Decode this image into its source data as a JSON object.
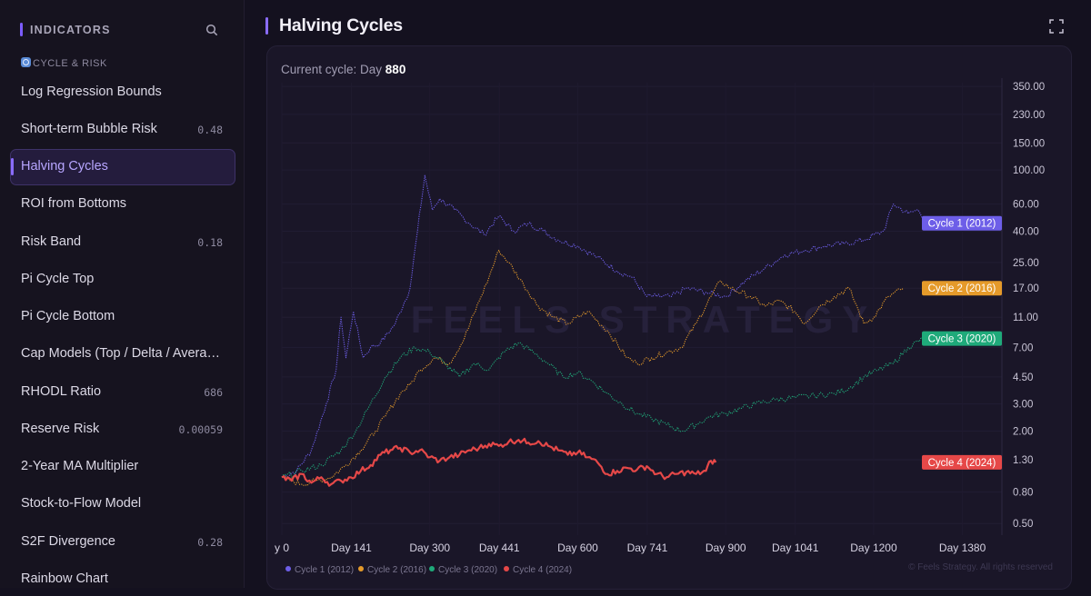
{
  "sidebar": {
    "title": "INDICATORS",
    "search_icon": "search-icon",
    "section_label": "CYCLE & RISK",
    "section_icon": "cycle-icon",
    "items": [
      {
        "label": "Log Regression Bounds",
        "value": ""
      },
      {
        "label": "Short-term Bubble Risk",
        "value": "0.48"
      },
      {
        "label": "Halving Cycles",
        "value": "",
        "active": true
      },
      {
        "label": "ROI from Bottoms",
        "value": ""
      },
      {
        "label": "Risk Band",
        "value": "0.18"
      },
      {
        "label": "Pi Cycle Top",
        "value": ""
      },
      {
        "label": "Pi Cycle Bottom",
        "value": ""
      },
      {
        "label": "Cap Models (Top / Delta / Averag…",
        "value": ""
      },
      {
        "label": "RHODL Ratio",
        "value": "686"
      },
      {
        "label": "Reserve Risk",
        "value": "0.00059"
      },
      {
        "label": "2-Year MA Multiplier",
        "value": ""
      },
      {
        "label": "Stock-to-Flow Model",
        "value": ""
      },
      {
        "label": "S2F Divergence",
        "value": "0.28"
      },
      {
        "label": "Rainbow Chart",
        "value": ""
      }
    ]
  },
  "header": {
    "title": "Halving Cycles",
    "expand_icon": "expand-icon"
  },
  "card": {
    "current_cycle_prefix": "Current cycle: Day ",
    "current_cycle_day": "880",
    "watermark": "FEELS STRATEGY",
    "copyright": "© Feels Strategy. All rights reserved"
  },
  "chart_data": {
    "type": "line",
    "title": "Halving Cycles",
    "xlabel": "",
    "ylabel": "",
    "y_scale": "log",
    "ylim": [
      0.42,
      370
    ],
    "xlim": [
      0,
      1460
    ],
    "x_ticks": [
      {
        "x": 0,
        "label": "y 0"
      },
      {
        "x": 141,
        "label": "Day 141"
      },
      {
        "x": 300,
        "label": "Day 300"
      },
      {
        "x": 441,
        "label": "Day 441"
      },
      {
        "x": 600,
        "label": "Day 600"
      },
      {
        "x": 741,
        "label": "Day 741"
      },
      {
        "x": 900,
        "label": "Day 900"
      },
      {
        "x": 1041,
        "label": "Day 1041"
      },
      {
        "x": 1200,
        "label": "Day 1200"
      },
      {
        "x": 1380,
        "label": "Day 1380"
      }
    ],
    "y_ticks": [
      {
        "v": 350,
        "label": "350.00"
      },
      {
        "v": 230,
        "label": "230.00"
      },
      {
        "v": 150,
        "label": "150.00"
      },
      {
        "v": 100,
        "label": "100.00"
      },
      {
        "v": 60,
        "label": "60.00"
      },
      {
        "v": 40,
        "label": "40.00"
      },
      {
        "v": 25,
        "label": "25.00"
      },
      {
        "v": 17,
        "label": "17.00"
      },
      {
        "v": 11,
        "label": "11.00"
      },
      {
        "v": 7,
        "label": "7.00"
      },
      {
        "v": 4.5,
        "label": "4.50"
      },
      {
        "v": 3,
        "label": "3.00"
      },
      {
        "v": 2,
        "label": "2.00"
      },
      {
        "v": 1.3,
        "label": "1.30"
      },
      {
        "v": 0.8,
        "label": "0.80"
      },
      {
        "v": 0.5,
        "label": "0.50"
      }
    ],
    "grid": true,
    "legend_position": "bottom-left",
    "series": [
      {
        "name": "Cycle 1 (2012)",
        "color": "#6d5ee8",
        "dotted": true,
        "end_label": "Cycle 1 (2012)",
        "points": [
          [
            0,
            1.0
          ],
          [
            30,
            1.1
          ],
          [
            60,
            1.5
          ],
          [
            90,
            3.0
          ],
          [
            110,
            5.0
          ],
          [
            120,
            11
          ],
          [
            130,
            6
          ],
          [
            145,
            12
          ],
          [
            165,
            6
          ],
          [
            180,
            7
          ],
          [
            200,
            7.5
          ],
          [
            230,
            10
          ],
          [
            260,
            17
          ],
          [
            275,
            40
          ],
          [
            290,
            92
          ],
          [
            305,
            55
          ],
          [
            320,
            65
          ],
          [
            350,
            55
          ],
          [
            380,
            45
          ],
          [
            410,
            38
          ],
          [
            440,
            50
          ],
          [
            470,
            40
          ],
          [
            500,
            45
          ],
          [
            530,
            40
          ],
          [
            560,
            35
          ],
          [
            600,
            32
          ],
          [
            640,
            27
          ],
          [
            680,
            22
          ],
          [
            710,
            20
          ],
          [
            740,
            15
          ],
          [
            760,
            15
          ],
          [
            790,
            15
          ],
          [
            820,
            17
          ],
          [
            860,
            16
          ],
          [
            900,
            15
          ],
          [
            940,
            19
          ],
          [
            980,
            23
          ],
          [
            1020,
            28
          ],
          [
            1060,
            30
          ],
          [
            1100,
            32
          ],
          [
            1140,
            33
          ],
          [
            1180,
            35
          ],
          [
            1220,
            40
          ],
          [
            1240,
            60
          ],
          [
            1270,
            52
          ],
          [
            1290,
            55
          ],
          [
            1310,
            45
          ]
        ]
      },
      {
        "name": "Cycle 2 (2016)",
        "color": "#e59a2a",
        "dotted": true,
        "end_label": "Cycle 2 (2016)",
        "points": [
          [
            0,
            1.0
          ],
          [
            40,
            0.9
          ],
          [
            70,
            0.95
          ],
          [
            100,
            1.0
          ],
          [
            130,
            1.2
          ],
          [
            160,
            1.5
          ],
          [
            190,
            2.0
          ],
          [
            210,
            2.5
          ],
          [
            240,
            3.5
          ],
          [
            260,
            4.0
          ],
          [
            280,
            5.0
          ],
          [
            310,
            6.0
          ],
          [
            340,
            5.5
          ],
          [
            370,
            8
          ],
          [
            400,
            14
          ],
          [
            420,
            20
          ],
          [
            440,
            30
          ],
          [
            460,
            25
          ],
          [
            490,
            18
          ],
          [
            520,
            13
          ],
          [
            550,
            11
          ],
          [
            580,
            10
          ],
          [
            620,
            12
          ],
          [
            660,
            9
          ],
          [
            700,
            6
          ],
          [
            720,
            5.5
          ],
          [
            750,
            6
          ],
          [
            780,
            6.5
          ],
          [
            810,
            7
          ],
          [
            840,
            10
          ],
          [
            870,
            15
          ],
          [
            890,
            19
          ],
          [
            910,
            17
          ],
          [
            950,
            15
          ],
          [
            980,
            13
          ],
          [
            1010,
            14
          ],
          [
            1040,
            12
          ],
          [
            1060,
            10
          ],
          [
            1090,
            13
          ],
          [
            1120,
            15
          ],
          [
            1150,
            17
          ],
          [
            1170,
            12
          ],
          [
            1180,
            10
          ],
          [
            1200,
            11
          ],
          [
            1230,
            15
          ],
          [
            1260,
            17
          ]
        ]
      },
      {
        "name": "Cycle 3 (2020)",
        "color": "#1faa7a",
        "dotted": true,
        "end_label": "Cycle 3 (2020)",
        "points": [
          [
            0,
            1.0
          ],
          [
            40,
            1.1
          ],
          [
            80,
            1.2
          ],
          [
            120,
            1.5
          ],
          [
            150,
            2.0
          ],
          [
            180,
            3.0
          ],
          [
            210,
            4.5
          ],
          [
            240,
            6.0
          ],
          [
            270,
            7.0
          ],
          [
            300,
            6.5
          ],
          [
            330,
            5.5
          ],
          [
            360,
            4.5
          ],
          [
            390,
            5.5
          ],
          [
            420,
            5.0
          ],
          [
            450,
            6.5
          ],
          [
            480,
            7.5
          ],
          [
            510,
            6.5
          ],
          [
            540,
            5.5
          ],
          [
            570,
            4.5
          ],
          [
            600,
            4.8
          ],
          [
            630,
            4.2
          ],
          [
            660,
            3.5
          ],
          [
            690,
            3.0
          ],
          [
            720,
            2.6
          ],
          [
            750,
            2.4
          ],
          [
            780,
            2.2
          ],
          [
            810,
            2.0
          ],
          [
            840,
            2.2
          ],
          [
            870,
            2.5
          ],
          [
            900,
            2.6
          ],
          [
            930,
            2.8
          ],
          [
            960,
            3.0
          ],
          [
            1000,
            3.2
          ],
          [
            1040,
            3.3
          ],
          [
            1080,
            3.4
          ],
          [
            1120,
            3.5
          ],
          [
            1150,
            3.8
          ],
          [
            1180,
            4.5
          ],
          [
            1210,
            5.0
          ],
          [
            1240,
            5.5
          ],
          [
            1270,
            7.0
          ],
          [
            1300,
            8.0
          ]
        ]
      },
      {
        "name": "Cycle 4 (2024)",
        "color": "#e64848",
        "dotted": false,
        "end_label": "Cycle 4 (2024)",
        "points": [
          [
            0,
            1.0
          ],
          [
            20,
            0.95
          ],
          [
            40,
            1.05
          ],
          [
            60,
            0.92
          ],
          [
            80,
            1.0
          ],
          [
            100,
            0.9
          ],
          [
            120,
            0.95
          ],
          [
            140,
            1.0
          ],
          [
            160,
            1.1
          ],
          [
            180,
            1.2
          ],
          [
            200,
            1.4
          ],
          [
            220,
            1.5
          ],
          [
            240,
            1.55
          ],
          [
            260,
            1.45
          ],
          [
            280,
            1.5
          ],
          [
            300,
            1.35
          ],
          [
            320,
            1.28
          ],
          [
            340,
            1.35
          ],
          [
            360,
            1.4
          ],
          [
            380,
            1.5
          ],
          [
            400,
            1.55
          ],
          [
            420,
            1.65
          ],
          [
            440,
            1.6
          ],
          [
            460,
            1.7
          ],
          [
            480,
            1.75
          ],
          [
            500,
            1.68
          ],
          [
            520,
            1.72
          ],
          [
            540,
            1.6
          ],
          [
            560,
            1.5
          ],
          [
            580,
            1.4
          ],
          [
            600,
            1.45
          ],
          [
            620,
            1.35
          ],
          [
            640,
            1.25
          ],
          [
            660,
            1.05
          ],
          [
            680,
            1.1
          ],
          [
            700,
            1.15
          ],
          [
            720,
            1.12
          ],
          [
            740,
            1.18
          ],
          [
            760,
            1.05
          ],
          [
            780,
            1.0
          ],
          [
            800,
            1.05
          ],
          [
            820,
            1.08
          ],
          [
            840,
            1.05
          ],
          [
            860,
            1.1
          ],
          [
            870,
            1.28
          ],
          [
            880,
            1.25
          ]
        ]
      }
    ]
  }
}
